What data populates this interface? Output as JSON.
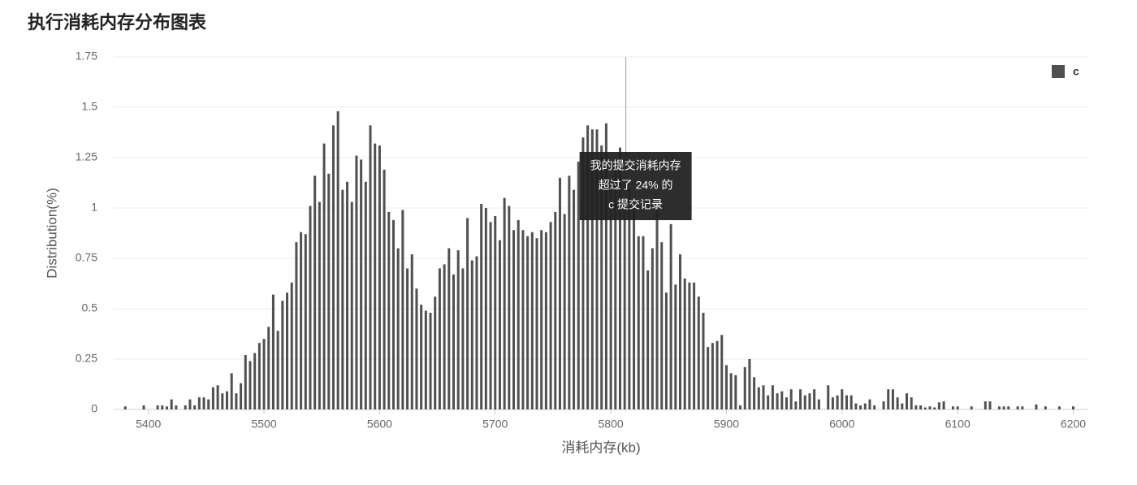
{
  "chart_data": {
    "type": "bar",
    "title": "执行消耗内存分布图表",
    "xlabel": "消耗内存(kb)",
    "ylabel": "Distribution(%)",
    "series": [
      {
        "name": "c",
        "color": "#505050",
        "x": [
          5380,
          5396,
          5408,
          5412,
          5416,
          5420,
          5424,
          5432,
          5436,
          5440,
          5444,
          5448,
          5452,
          5456,
          5460,
          5464,
          5468,
          5472,
          5476,
          5480,
          5484,
          5488,
          5492,
          5496,
          5500,
          5504,
          5508,
          5512,
          5516,
          5520,
          5524,
          5528,
          5532,
          5536,
          5540,
          5544,
          5548,
          5552,
          5556,
          5560,
          5564,
          5568,
          5572,
          5576,
          5580,
          5584,
          5588,
          5592,
          5596,
          5600,
          5604,
          5608,
          5612,
          5616,
          5620,
          5624,
          5628,
          5632,
          5636,
          5640,
          5644,
          5648,
          5652,
          5656,
          5660,
          5664,
          5668,
          5672,
          5676,
          5680,
          5684,
          5688,
          5692,
          5696,
          5700,
          5704,
          5708,
          5712,
          5716,
          5720,
          5724,
          5728,
          5732,
          5736,
          5740,
          5744,
          5748,
          5752,
          5756,
          5760,
          5764,
          5768,
          5772,
          5776,
          5780,
          5784,
          5788,
          5792,
          5796,
          5800,
          5804,
          5808,
          5812,
          5816,
          5820,
          5824,
          5828,
          5832,
          5836,
          5840,
          5844,
          5848,
          5852,
          5856,
          5860,
          5864,
          5868,
          5872,
          5876,
          5880,
          5884,
          5888,
          5892,
          5896,
          5900,
          5904,
          5908,
          5912,
          5916,
          5920,
          5924,
          5928,
          5932,
          5936,
          5940,
          5944,
          5948,
          5952,
          5956,
          5960,
          5964,
          5968,
          5972,
          5976,
          5980,
          5988,
          5992,
          5996,
          6000,
          6004,
          6008,
          6012,
          6016,
          6020,
          6024,
          6028,
          6036,
          6040,
          6044,
          6048,
          6052,
          6056,
          6060,
          6064,
          6068,
          6072,
          6076,
          6080,
          6084,
          6088,
          6096,
          6100,
          6112,
          6124,
          6128,
          6136,
          6140,
          6144,
          6152,
          6156,
          6168,
          6176,
          6188,
          6200
        ],
        "values": [
          0.015,
          0.02,
          0.02,
          0.02,
          0.015,
          0.05,
          0.02,
          0.02,
          0.05,
          0.02,
          0.06,
          0.06,
          0.05,
          0.11,
          0.12,
          0.08,
          0.09,
          0.18,
          0.08,
          0.13,
          0.27,
          0.24,
          0.28,
          0.33,
          0.35,
          0.41,
          0.57,
          0.39,
          0.54,
          0.58,
          0.63,
          0.83,
          0.88,
          0.87,
          1.01,
          1.16,
          1.03,
          1.32,
          1.17,
          1.41,
          1.48,
          1.09,
          1.13,
          1.03,
          1.26,
          1.24,
          1.13,
          1.41,
          1.32,
          1.31,
          1.19,
          0.98,
          0.94,
          0.8,
          0.99,
          0.7,
          0.77,
          0.6,
          0.52,
          0.49,
          0.48,
          0.56,
          0.7,
          0.72,
          0.8,
          0.67,
          0.79,
          0.7,
          0.95,
          0.74,
          0.76,
          1.02,
          1.0,
          0.93,
          0.96,
          0.84,
          1.05,
          1.01,
          0.89,
          0.94,
          0.89,
          0.86,
          0.88,
          0.85,
          0.89,
          0.88,
          0.93,
          0.98,
          1.15,
          0.97,
          1.16,
          1.09,
          1.23,
          1.35,
          1.41,
          1.39,
          1.39,
          1.31,
          1.42,
          1.1,
          1.2,
          1.3,
          1.05,
          1.1,
          1.0,
          0.86,
          0.86,
          0.69,
          0.8,
          1.0,
          0.83,
          0.58,
          0.92,
          0.62,
          0.77,
          0.65,
          0.63,
          0.63,
          0.56,
          0.48,
          0.31,
          0.33,
          0.34,
          0.37,
          0.22,
          0.18,
          0.17,
          0.02,
          0.21,
          0.25,
          0.16,
          0.11,
          0.12,
          0.07,
          0.12,
          0.08,
          0.09,
          0.06,
          0.1,
          0.04,
          0.1,
          0.07,
          0.08,
          0.1,
          0.05,
          0.12,
          0.06,
          0.07,
          0.1,
          0.07,
          0.07,
          0.03,
          0.02,
          0.03,
          0.05,
          0.02,
          0.04,
          0.1,
          0.1,
          0.06,
          0.03,
          0.08,
          0.06,
          0.02,
          0.02,
          0.01,
          0.015,
          0.01,
          0.035,
          0.04,
          0.015,
          0.015,
          0.015,
          0.04,
          0.04,
          0.015,
          0.015,
          0.015,
          0.015,
          0.015,
          0.025,
          0.015,
          0.015,
          0.015
        ]
      }
    ],
    "xlim": [
      5370,
      6213
    ],
    "xticks": [
      5400,
      5500,
      5600,
      5700,
      5800,
      5900,
      6000,
      6100,
      6200
    ],
    "ylim": [
      0,
      1.75
    ],
    "yticks": [
      0,
      0.25,
      0.5,
      0.75,
      1,
      1.25,
      1.5,
      1.75
    ],
    "grid": true,
    "legend": "top-right",
    "highlight_x": 5813,
    "tooltip": [
      "我的提交消耗内存",
      "超过了 24% 的",
      "c 提交记录"
    ]
  }
}
